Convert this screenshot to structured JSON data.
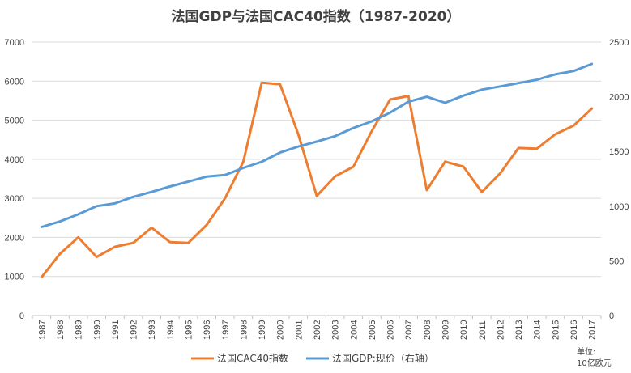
{
  "chart_data": {
    "type": "line",
    "title": "法国GDP与法国CAC40指数（1987-2020）",
    "x": [
      "1987",
      "1988",
      "1989",
      "1990",
      "1991",
      "1992",
      "1993",
      "1994",
      "1995",
      "1996",
      "1997",
      "1998",
      "1999",
      "2000",
      "2001",
      "2002",
      "2003",
      "2004",
      "2005",
      "2006",
      "2007",
      "2008",
      "2009",
      "2010",
      "2011",
      "2012",
      "2013",
      "2014",
      "2015",
      "2016",
      "2017"
    ],
    "y_left_ticks": [
      "0",
      "1000",
      "2000",
      "3000",
      "4000",
      "5000",
      "6000",
      "7000"
    ],
    "y_right_ticks": [
      "0",
      "500",
      "1000",
      "1500",
      "2000",
      "2500"
    ],
    "ylim_left": [
      0,
      7000
    ],
    "ylim_right": [
      0,
      2500
    ],
    "grid": true,
    "legend_position": "bottom",
    "series": [
      {
        "name": "法国CAC40指数",
        "axis": "left",
        "color": "#ED7D31",
        "values": [
          980,
          1580,
          2000,
          1500,
          1760,
          1860,
          2250,
          1880,
          1860,
          2320,
          3000,
          3940,
          5960,
          5920,
          4630,
          3060,
          3560,
          3810,
          4720,
          5530,
          5620,
          3210,
          3940,
          3810,
          3160,
          3640,
          4290,
          4270,
          4640,
          4860,
          5300
        ]
      },
      {
        "name": "法国GDP:现价（右轴）",
        "axis": "right",
        "color": "#5B9BD5",
        "values": [
          810,
          860,
          925,
          1000,
          1025,
          1085,
          1130,
          1180,
          1225,
          1270,
          1285,
          1350,
          1405,
          1490,
          1545,
          1590,
          1640,
          1715,
          1775,
          1855,
          1955,
          2000,
          1945,
          2010,
          2065,
          2095,
          2125,
          2155,
          2205,
          2235,
          2300
        ]
      }
    ]
  },
  "unit": {
    "line1": "单位:",
    "line2": "10亿欧元"
  }
}
